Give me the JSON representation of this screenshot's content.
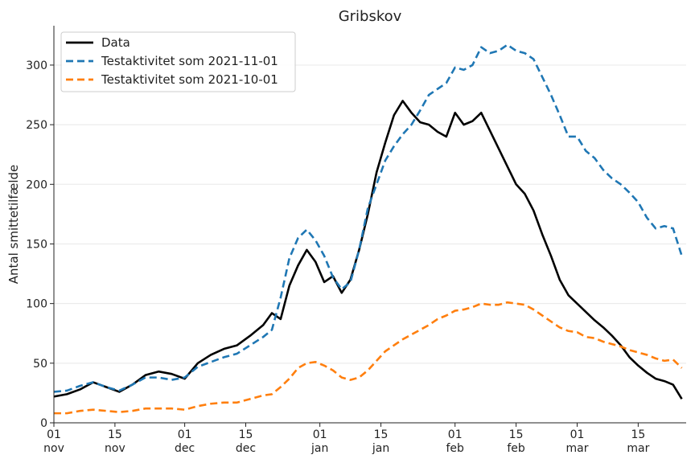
{
  "chart_data": {
    "type": "line",
    "title": "Gribskov",
    "xlabel": "",
    "ylabel": "Antal smittetilfælde",
    "ylim": [
      0,
      333
    ],
    "xlim": [
      "2021-11-01",
      "2022-03-26"
    ],
    "grid": {
      "y": true,
      "x": false
    },
    "legend_position": "top-left",
    "y_ticks": [
      0,
      50,
      100,
      150,
      200,
      250,
      300
    ],
    "x_ticks": [
      {
        "date": "2021-11-01",
        "day": "01",
        "month": "nov"
      },
      {
        "date": "2021-11-15",
        "day": "15",
        "month": "nov"
      },
      {
        "date": "2021-12-01",
        "day": "01",
        "month": "dec"
      },
      {
        "date": "2021-12-15",
        "day": "15",
        "month": "dec"
      },
      {
        "date": "2022-01-01",
        "day": "01",
        "month": "jan"
      },
      {
        "date": "2022-01-15",
        "day": "15",
        "month": "jan"
      },
      {
        "date": "2022-02-01",
        "day": "01",
        "month": "feb"
      },
      {
        "date": "2022-02-15",
        "day": "15",
        "month": "feb"
      },
      {
        "date": "2022-03-01",
        "day": "01",
        "month": "mar"
      },
      {
        "date": "2022-03-15",
        "day": "15",
        "month": "mar"
      }
    ],
    "series": [
      {
        "name": "Data",
        "color": "#000000",
        "dash": "solid",
        "points": [
          [
            "2021-11-01",
            22
          ],
          [
            "2021-11-04",
            24
          ],
          [
            "2021-11-07",
            28
          ],
          [
            "2021-11-10",
            34
          ],
          [
            "2021-11-13",
            30
          ],
          [
            "2021-11-16",
            26
          ],
          [
            "2021-11-19",
            32
          ],
          [
            "2021-11-22",
            40
          ],
          [
            "2021-11-25",
            43
          ],
          [
            "2021-11-28",
            41
          ],
          [
            "2021-12-01",
            37
          ],
          [
            "2021-12-04",
            50
          ],
          [
            "2021-12-07",
            57
          ],
          [
            "2021-12-10",
            62
          ],
          [
            "2021-12-13",
            65
          ],
          [
            "2021-12-16",
            73
          ],
          [
            "2021-12-19",
            82
          ],
          [
            "2021-12-21",
            92
          ],
          [
            "2021-12-23",
            87
          ],
          [
            "2021-12-25",
            115
          ],
          [
            "2021-12-27",
            132
          ],
          [
            "2021-12-29",
            145
          ],
          [
            "2021-12-31",
            135
          ],
          [
            "2022-01-02",
            118
          ],
          [
            "2022-01-04",
            123
          ],
          [
            "2022-01-06",
            109
          ],
          [
            "2022-01-08",
            120
          ],
          [
            "2022-01-10",
            145
          ],
          [
            "2022-01-12",
            175
          ],
          [
            "2022-01-14",
            210
          ],
          [
            "2022-01-16",
            235
          ],
          [
            "2022-01-18",
            258
          ],
          [
            "2022-01-20",
            270
          ],
          [
            "2022-01-22",
            260
          ],
          [
            "2022-01-24",
            252
          ],
          [
            "2022-01-26",
            250
          ],
          [
            "2022-01-28",
            244
          ],
          [
            "2022-01-30",
            240
          ],
          [
            "2022-02-01",
            260
          ],
          [
            "2022-02-03",
            250
          ],
          [
            "2022-02-05",
            253
          ],
          [
            "2022-02-07",
            260
          ],
          [
            "2022-02-09",
            245
          ],
          [
            "2022-02-11",
            230
          ],
          [
            "2022-02-13",
            215
          ],
          [
            "2022-02-15",
            200
          ],
          [
            "2022-02-17",
            192
          ],
          [
            "2022-02-19",
            178
          ],
          [
            "2022-02-21",
            158
          ],
          [
            "2022-02-23",
            140
          ],
          [
            "2022-02-25",
            120
          ],
          [
            "2022-02-27",
            107
          ],
          [
            "2022-03-01",
            100
          ],
          [
            "2022-03-03",
            93
          ],
          [
            "2022-03-05",
            86
          ],
          [
            "2022-03-07",
            80
          ],
          [
            "2022-03-09",
            73
          ],
          [
            "2022-03-11",
            65
          ],
          [
            "2022-03-13",
            55
          ],
          [
            "2022-03-15",
            48
          ],
          [
            "2022-03-17",
            42
          ],
          [
            "2022-03-19",
            37
          ],
          [
            "2022-03-21",
            35
          ],
          [
            "2022-03-23",
            32
          ],
          [
            "2022-03-25",
            20
          ]
        ]
      },
      {
        "name": "Testaktivitet som 2021-11-01",
        "color": "#1f77b4",
        "dash": "dashed",
        "points": [
          [
            "2021-11-01",
            26
          ],
          [
            "2021-11-04",
            27
          ],
          [
            "2021-11-07",
            31
          ],
          [
            "2021-11-10",
            34
          ],
          [
            "2021-11-13",
            30
          ],
          [
            "2021-11-16",
            27
          ],
          [
            "2021-11-19",
            32
          ],
          [
            "2021-11-22",
            38
          ],
          [
            "2021-11-25",
            38
          ],
          [
            "2021-11-28",
            36
          ],
          [
            "2021-12-01",
            38
          ],
          [
            "2021-12-04",
            47
          ],
          [
            "2021-12-07",
            51
          ],
          [
            "2021-12-10",
            55
          ],
          [
            "2021-12-13",
            58
          ],
          [
            "2021-12-16",
            65
          ],
          [
            "2021-12-19",
            72
          ],
          [
            "2021-12-21",
            78
          ],
          [
            "2021-12-23",
            105
          ],
          [
            "2021-12-25",
            138
          ],
          [
            "2021-12-27",
            155
          ],
          [
            "2021-12-29",
            162
          ],
          [
            "2021-12-31",
            153
          ],
          [
            "2022-01-02",
            140
          ],
          [
            "2022-01-04",
            122
          ],
          [
            "2022-01-06",
            112
          ],
          [
            "2022-01-08",
            118
          ],
          [
            "2022-01-10",
            145
          ],
          [
            "2022-01-12",
            180
          ],
          [
            "2022-01-14",
            200
          ],
          [
            "2022-01-16",
            220
          ],
          [
            "2022-01-18",
            232
          ],
          [
            "2022-01-20",
            242
          ],
          [
            "2022-01-22",
            250
          ],
          [
            "2022-01-24",
            262
          ],
          [
            "2022-01-26",
            275
          ],
          [
            "2022-01-28",
            280
          ],
          [
            "2022-01-30",
            285
          ],
          [
            "2022-02-01",
            298
          ],
          [
            "2022-02-03",
            296
          ],
          [
            "2022-02-05",
            300
          ],
          [
            "2022-02-07",
            315
          ],
          [
            "2022-02-09",
            310
          ],
          [
            "2022-02-11",
            312
          ],
          [
            "2022-02-13",
            317
          ],
          [
            "2022-02-15",
            312
          ],
          [
            "2022-02-17",
            310
          ],
          [
            "2022-02-19",
            305
          ],
          [
            "2022-02-21",
            290
          ],
          [
            "2022-02-23",
            275
          ],
          [
            "2022-02-25",
            258
          ],
          [
            "2022-02-27",
            240
          ],
          [
            "2022-03-01",
            240
          ],
          [
            "2022-03-03",
            228
          ],
          [
            "2022-03-05",
            222
          ],
          [
            "2022-03-07",
            212
          ],
          [
            "2022-03-09",
            205
          ],
          [
            "2022-03-11",
            200
          ],
          [
            "2022-03-13",
            193
          ],
          [
            "2022-03-15",
            185
          ],
          [
            "2022-03-17",
            172
          ],
          [
            "2022-03-19",
            163
          ],
          [
            "2022-03-21",
            165
          ],
          [
            "2022-03-23",
            163
          ],
          [
            "2022-03-25",
            140
          ]
        ]
      },
      {
        "name": "Testaktivitet som 2021-10-01",
        "color": "#ff7f0e",
        "dash": "dashed",
        "points": [
          [
            "2021-11-01",
            8
          ],
          [
            "2021-11-04",
            8
          ],
          [
            "2021-11-07",
            10
          ],
          [
            "2021-11-10",
            11
          ],
          [
            "2021-11-13",
            10
          ],
          [
            "2021-11-16",
            9
          ],
          [
            "2021-11-19",
            10
          ],
          [
            "2021-11-22",
            12
          ],
          [
            "2021-11-25",
            12
          ],
          [
            "2021-11-28",
            12
          ],
          [
            "2021-12-01",
            11
          ],
          [
            "2021-12-04",
            14
          ],
          [
            "2021-12-07",
            16
          ],
          [
            "2021-12-10",
            17
          ],
          [
            "2021-12-13",
            17
          ],
          [
            "2021-12-16",
            20
          ],
          [
            "2021-12-19",
            23
          ],
          [
            "2021-12-21",
            24
          ],
          [
            "2021-12-23",
            30
          ],
          [
            "2021-12-25",
            37
          ],
          [
            "2021-12-27",
            46
          ],
          [
            "2021-12-29",
            50
          ],
          [
            "2021-12-31",
            51
          ],
          [
            "2022-01-02",
            48
          ],
          [
            "2022-01-04",
            44
          ],
          [
            "2022-01-06",
            38
          ],
          [
            "2022-01-08",
            36
          ],
          [
            "2022-01-10",
            38
          ],
          [
            "2022-01-12",
            44
          ],
          [
            "2022-01-14",
            52
          ],
          [
            "2022-01-16",
            60
          ],
          [
            "2022-01-18",
            65
          ],
          [
            "2022-01-20",
            70
          ],
          [
            "2022-01-22",
            74
          ],
          [
            "2022-01-24",
            78
          ],
          [
            "2022-01-26",
            82
          ],
          [
            "2022-01-28",
            87
          ],
          [
            "2022-01-30",
            90
          ],
          [
            "2022-02-01",
            94
          ],
          [
            "2022-02-03",
            95
          ],
          [
            "2022-02-05",
            97
          ],
          [
            "2022-02-07",
            100
          ],
          [
            "2022-02-09",
            99
          ],
          [
            "2022-02-11",
            99
          ],
          [
            "2022-02-13",
            101
          ],
          [
            "2022-02-15",
            100
          ],
          [
            "2022-02-17",
            99
          ],
          [
            "2022-02-19",
            95
          ],
          [
            "2022-02-21",
            90
          ],
          [
            "2022-02-23",
            85
          ],
          [
            "2022-02-25",
            80
          ],
          [
            "2022-02-27",
            77
          ],
          [
            "2022-03-01",
            76
          ],
          [
            "2022-03-03",
            72
          ],
          [
            "2022-03-05",
            71
          ],
          [
            "2022-03-07",
            68
          ],
          [
            "2022-03-09",
            66
          ],
          [
            "2022-03-11",
            64
          ],
          [
            "2022-03-13",
            61
          ],
          [
            "2022-03-15",
            59
          ],
          [
            "2022-03-17",
            57
          ],
          [
            "2022-03-19",
            54
          ],
          [
            "2022-03-21",
            52
          ],
          [
            "2022-03-23",
            53
          ],
          [
            "2022-03-25",
            46
          ]
        ]
      }
    ]
  }
}
